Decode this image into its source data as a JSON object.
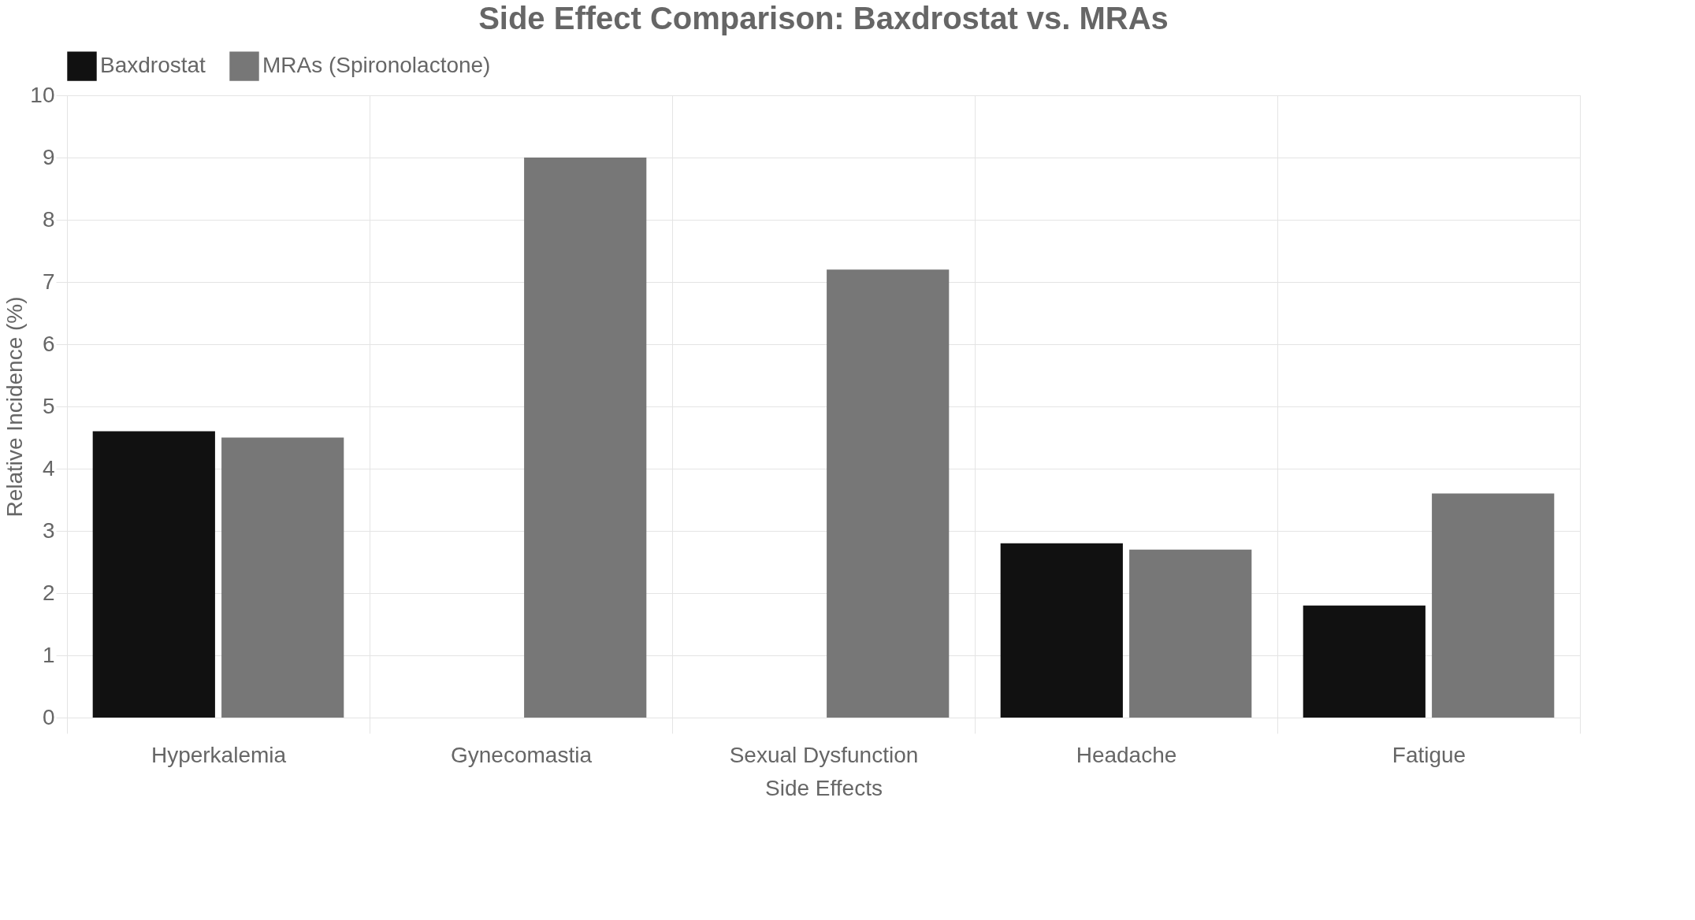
{
  "chart_data": {
    "type": "bar",
    "title": "Side Effect Comparison: Baxdrostat vs. MRAs",
    "xlabel": "Side Effects",
    "ylabel": "Relative Incidence (%)",
    "categories": [
      "Hyperkalemia",
      "Gynecomastia",
      "Sexual Dysfunction",
      "Headache",
      "Fatigue"
    ],
    "series": [
      {
        "name": "Baxdrostat",
        "color": "#111111",
        "values": [
          4.6,
          0,
          0,
          2.8,
          1.8
        ]
      },
      {
        "name": "MRAs (Spironolactone)",
        "color": "#777777",
        "values": [
          4.5,
          9.0,
          7.2,
          2.7,
          3.6
        ]
      }
    ],
    "ylim": [
      0,
      10
    ],
    "yticks": [
      0,
      1,
      2,
      3,
      4,
      5,
      6,
      7,
      8,
      9,
      10
    ],
    "grid": true,
    "legend": "top"
  }
}
